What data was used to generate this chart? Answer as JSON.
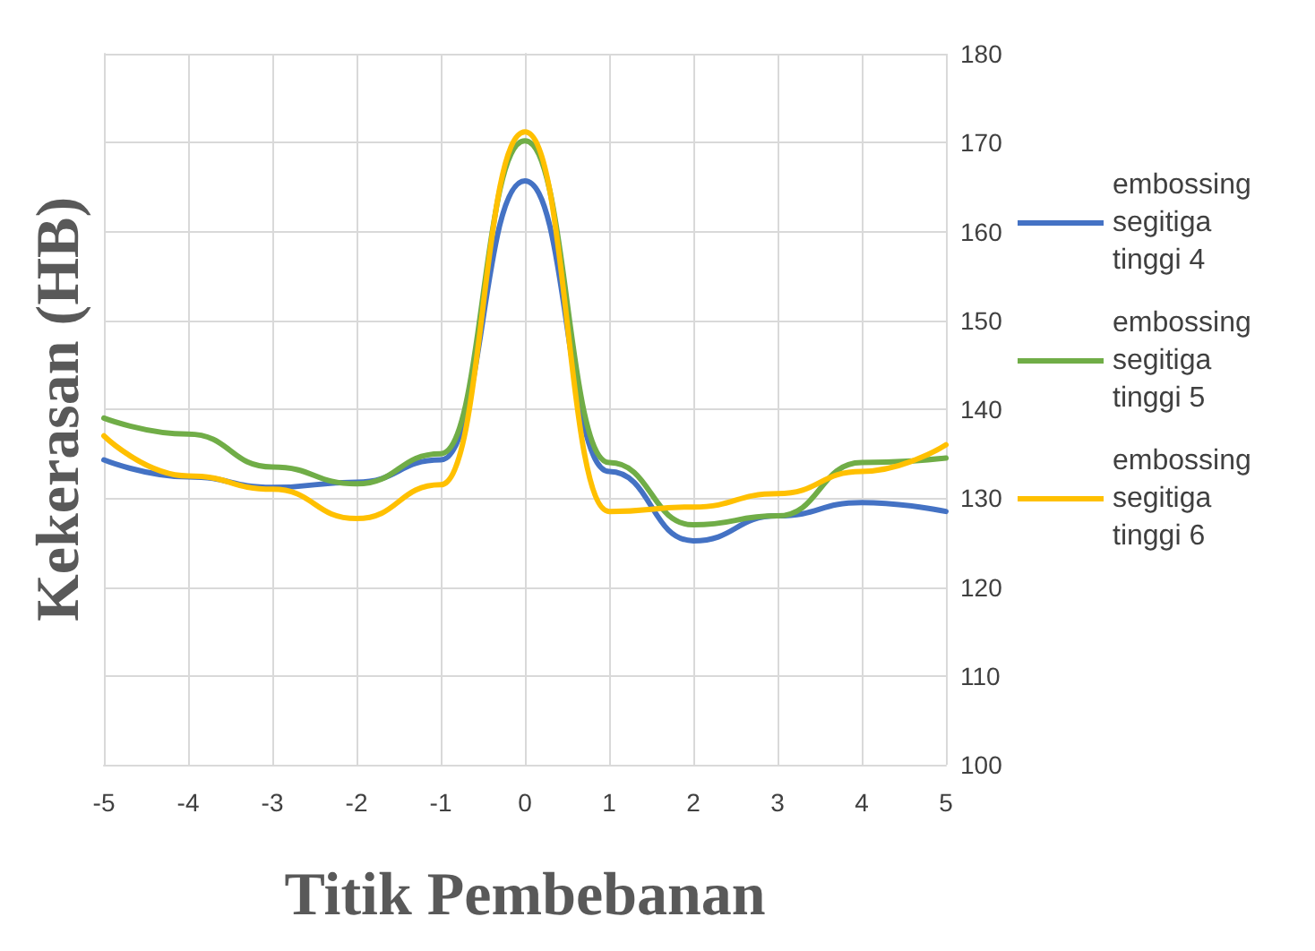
{
  "chart_data": {
    "type": "line",
    "xlabel": "Titik Pembebanan",
    "ylabel": "Kekerasan (HB)",
    "x": [
      -5,
      -4,
      -3,
      -2,
      -1,
      0,
      1,
      2,
      3,
      4,
      5
    ],
    "series": [
      {
        "name": "embossing segitiga tinggi 4",
        "color": "#4472c4",
        "values": [
          134.3,
          132.4,
          131.2,
          131.8,
          134.3,
          165.7,
          133,
          125.2,
          128,
          129.5,
          128.5
        ]
      },
      {
        "name": "embossing segitiga tinggi 5",
        "color": "#70ad47",
        "values": [
          139,
          137.2,
          133.5,
          131.6,
          135,
          170.2,
          134,
          127,
          128,
          134,
          134.5
        ]
      },
      {
        "name": "embossing segitiga tinggi 6",
        "color": "#ffc000",
        "values": [
          137,
          132.5,
          131,
          127.7,
          131.5,
          171.2,
          128.5,
          129,
          130.5,
          133,
          136
        ]
      }
    ],
    "xlim": [
      -5,
      5
    ],
    "xticks": [
      -5,
      -4,
      -3,
      -2,
      -1,
      0,
      1,
      2,
      3,
      4,
      5
    ],
    "ylim": [
      100,
      180
    ],
    "yticks": [
      100,
      110,
      120,
      130,
      140,
      150,
      160,
      170,
      180
    ],
    "grid": true,
    "legend": "right",
    "marker": "none",
    "line_style": "solid"
  }
}
